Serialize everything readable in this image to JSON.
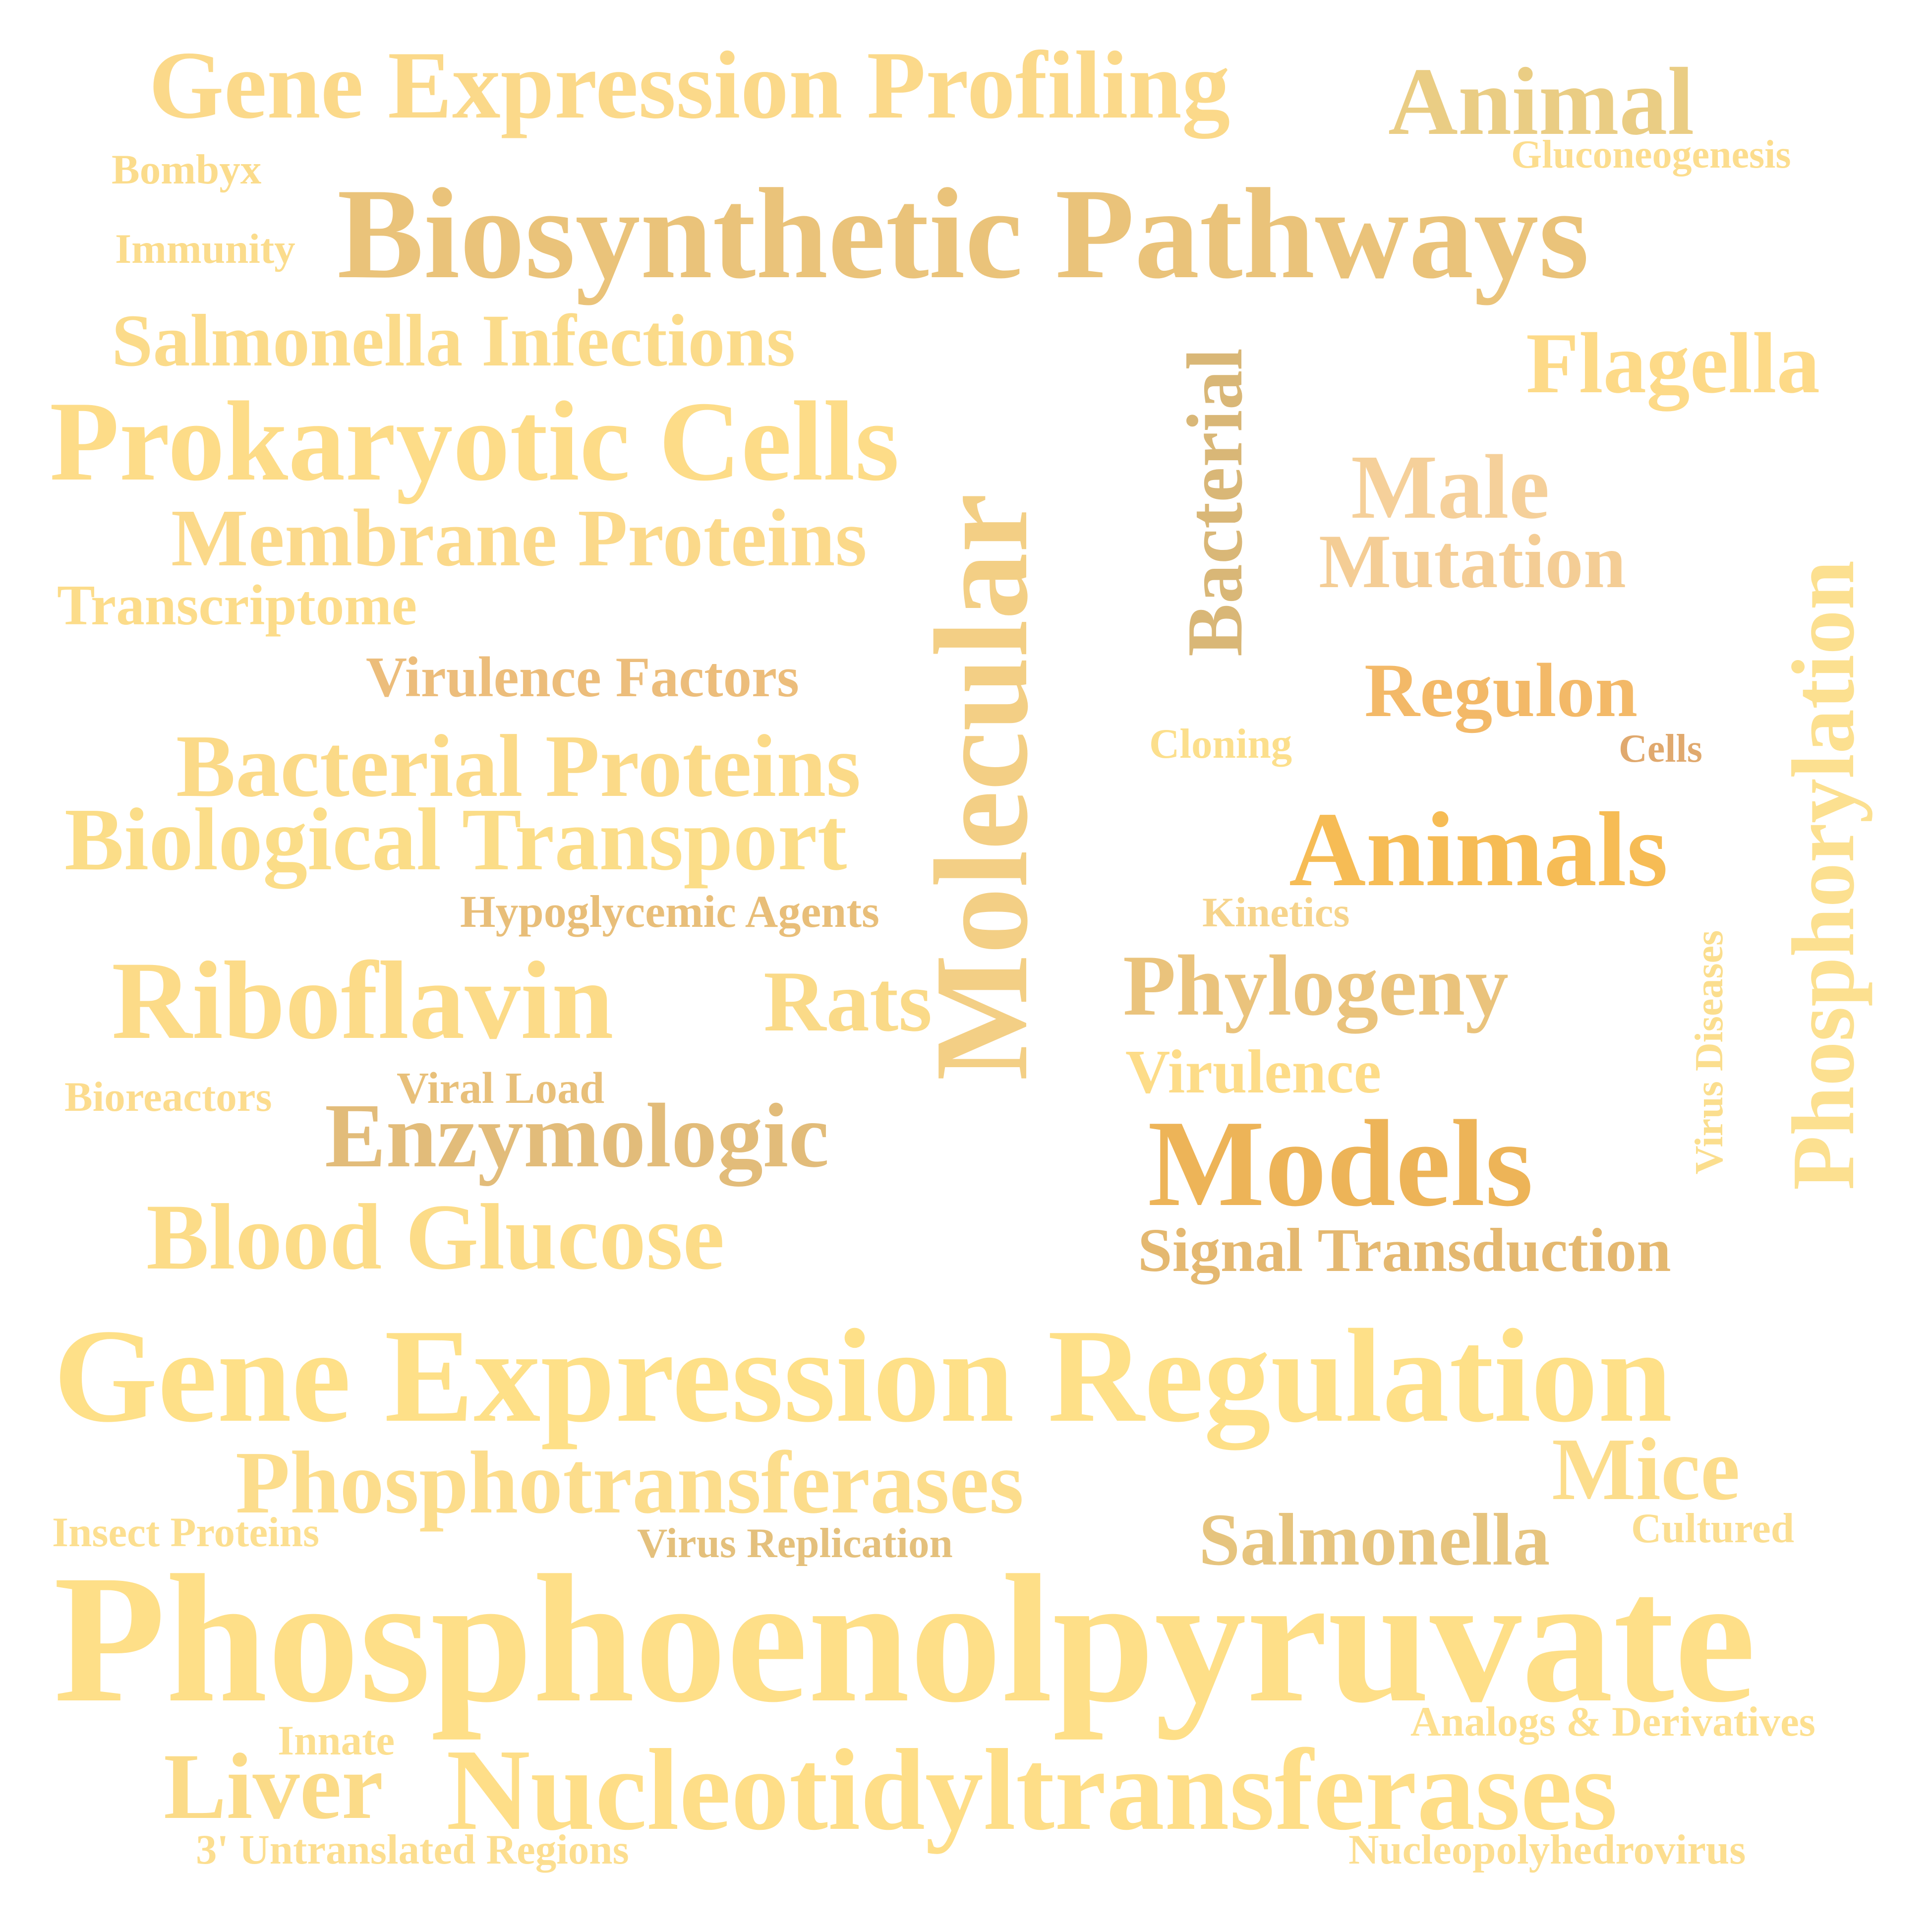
{
  "words": [
    {
      "text": "Gene Expression Profiling",
      "color": "#FBD98A"
    },
    {
      "text": "Animal",
      "color": "#EACD84"
    },
    {
      "text": "Bombyx",
      "color": "#FBDC8C"
    },
    {
      "text": "Gluconeogenesis",
      "color": "#FCDD8E"
    },
    {
      "text": "Biosynthetic Pathways",
      "color": "#EAC37A"
    },
    {
      "text": "Immunity",
      "color": "#FBDC8C"
    },
    {
      "text": "Salmonella Infections",
      "color": "#FBDB8A"
    },
    {
      "text": "Flagella",
      "color": "#FDDA88"
    },
    {
      "text": "Prokaryotic Cells",
      "color": "#FDDC88"
    },
    {
      "text": "Molecular",
      "color": "#F3CF85"
    },
    {
      "text": "Bacterial",
      "color": "#D9B777"
    },
    {
      "text": "Male",
      "color": "#F5D09A"
    },
    {
      "text": "Membrane Proteins",
      "color": "#FBD98A"
    },
    {
      "text": "Mutation",
      "color": "#F4CD95"
    },
    {
      "text": "Transcriptome",
      "color": "#FCDC8A"
    },
    {
      "text": "Virulence Factors",
      "color": "#ECBD7B"
    },
    {
      "text": "Regulon",
      "color": "#F3B968"
    },
    {
      "text": "Phosphorylation",
      "color": "#FCE090"
    },
    {
      "text": "Cloning",
      "color": "#FCDF8C"
    },
    {
      "text": "Cells",
      "color": "#E0A96E"
    },
    {
      "text": "Bacterial Proteins",
      "color": "#FBDA88"
    },
    {
      "text": "Biological Transport",
      "color": "#FBDD88"
    },
    {
      "text": "Animals",
      "color": "#F6BC55"
    },
    {
      "text": "Hypoglycemic Agents",
      "color": "#E8BE79"
    },
    {
      "text": "Kinetics",
      "color": "#F6D48C"
    },
    {
      "text": "Riboflavin",
      "color": "#FCDB88"
    },
    {
      "text": "Rats",
      "color": "#FADA88"
    },
    {
      "text": "Phylogeny",
      "color": "#EAC37C"
    },
    {
      "text": "Virus Diseases",
      "color": "#FBDE8E"
    },
    {
      "text": "Bioreactors",
      "color": "#FCDC8E"
    },
    {
      "text": "Viral Load",
      "color": "#E8C07A"
    },
    {
      "text": "Virulence",
      "color": "#FDDC88"
    },
    {
      "text": "Enzymologic",
      "color": "#E2BC7A"
    },
    {
      "text": "Models",
      "color": "#EDB458"
    },
    {
      "text": "Blood Glucose",
      "color": "#FCDC88"
    },
    {
      "text": "Signal Transduction",
      "color": "#E4B870"
    },
    {
      "text": "Gene Expression Regulation",
      "color": "#FEE088"
    },
    {
      "text": "Phosphotransferases",
      "color": "#FCDD8C"
    },
    {
      "text": "Mice",
      "color": "#FCDD8C"
    },
    {
      "text": "Insect Proteins",
      "color": "#FCDF90"
    },
    {
      "text": "Virus Replication",
      "color": "#E4C07C"
    },
    {
      "text": "Salmonella",
      "color": "#E6C47E"
    },
    {
      "text": "Cultured",
      "color": "#FBDE90"
    },
    {
      "text": "Phosphoenolpyruvate",
      "color": "#FEDF88"
    },
    {
      "text": "Innate",
      "color": "#FCDF90"
    },
    {
      "text": "Analogs & Derivatives",
      "color": "#FDE090"
    },
    {
      "text": "Liver",
      "color": "#FBDB88"
    },
    {
      "text": "Nucleotidyltransferases",
      "color": "#FEDE88"
    },
    {
      "text": "3' Untranslated Regions",
      "color": "#FCDE90"
    },
    {
      "text": "Nucleopolyhedrovirus",
      "color": "#FCDE90"
    }
  ]
}
